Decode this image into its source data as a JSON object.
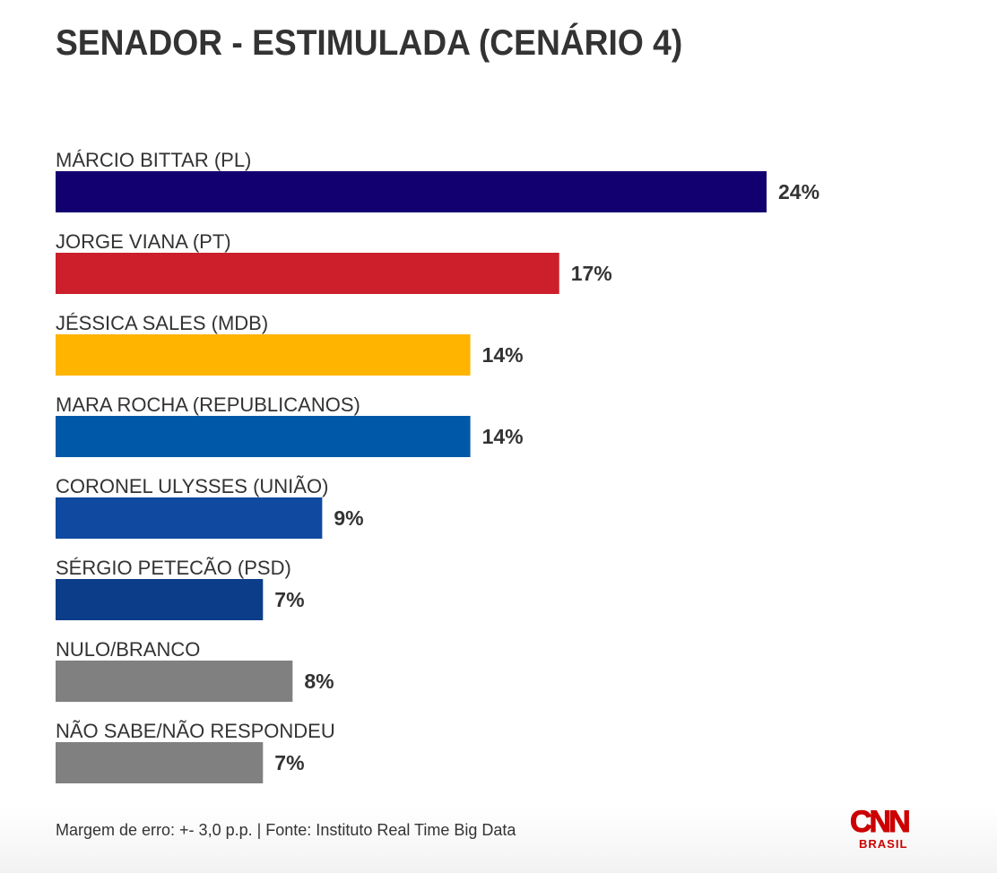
{
  "chart_data": {
    "type": "bar",
    "orientation": "horizontal",
    "title": "SENADOR - ESTIMULADA (CENÁRIO 4)",
    "xlabel": "",
    "ylabel": "",
    "xlim": [
      0,
      24
    ],
    "grid": false,
    "categories": [
      "MÁRCIO BITTAR (PL)",
      "JORGE VIANA (PT)",
      "JÉSSICA SALES (MDB)",
      "MARA ROCHA (REPUBLICANOS)",
      "CORONEL ULYSSES (UNIÃO)",
      "SÉRGIO PETECÃO (PSD)",
      "NULO/BRANCO",
      "NÃO SABE/NÃO RESPONDEU"
    ],
    "values": [
      24,
      17,
      14,
      14,
      9,
      7,
      8,
      7
    ],
    "value_labels": [
      "24%",
      "17%",
      "14%",
      "14%",
      "9%",
      "7%",
      "8%",
      "7%"
    ],
    "colors": [
      "#130070",
      "#cc1f2b",
      "#ffb400",
      "#0058a8",
      "#0f4aa0",
      "#0c3d88",
      "#808080",
      "#808080"
    ]
  },
  "footer": {
    "note": "Margem de erro: +- 3,0 p.p. | Fonte: Instituto Real Time Big Data"
  },
  "logo": {
    "name": "CNN",
    "sub": "BRASIL",
    "color": "#cc0000"
  }
}
